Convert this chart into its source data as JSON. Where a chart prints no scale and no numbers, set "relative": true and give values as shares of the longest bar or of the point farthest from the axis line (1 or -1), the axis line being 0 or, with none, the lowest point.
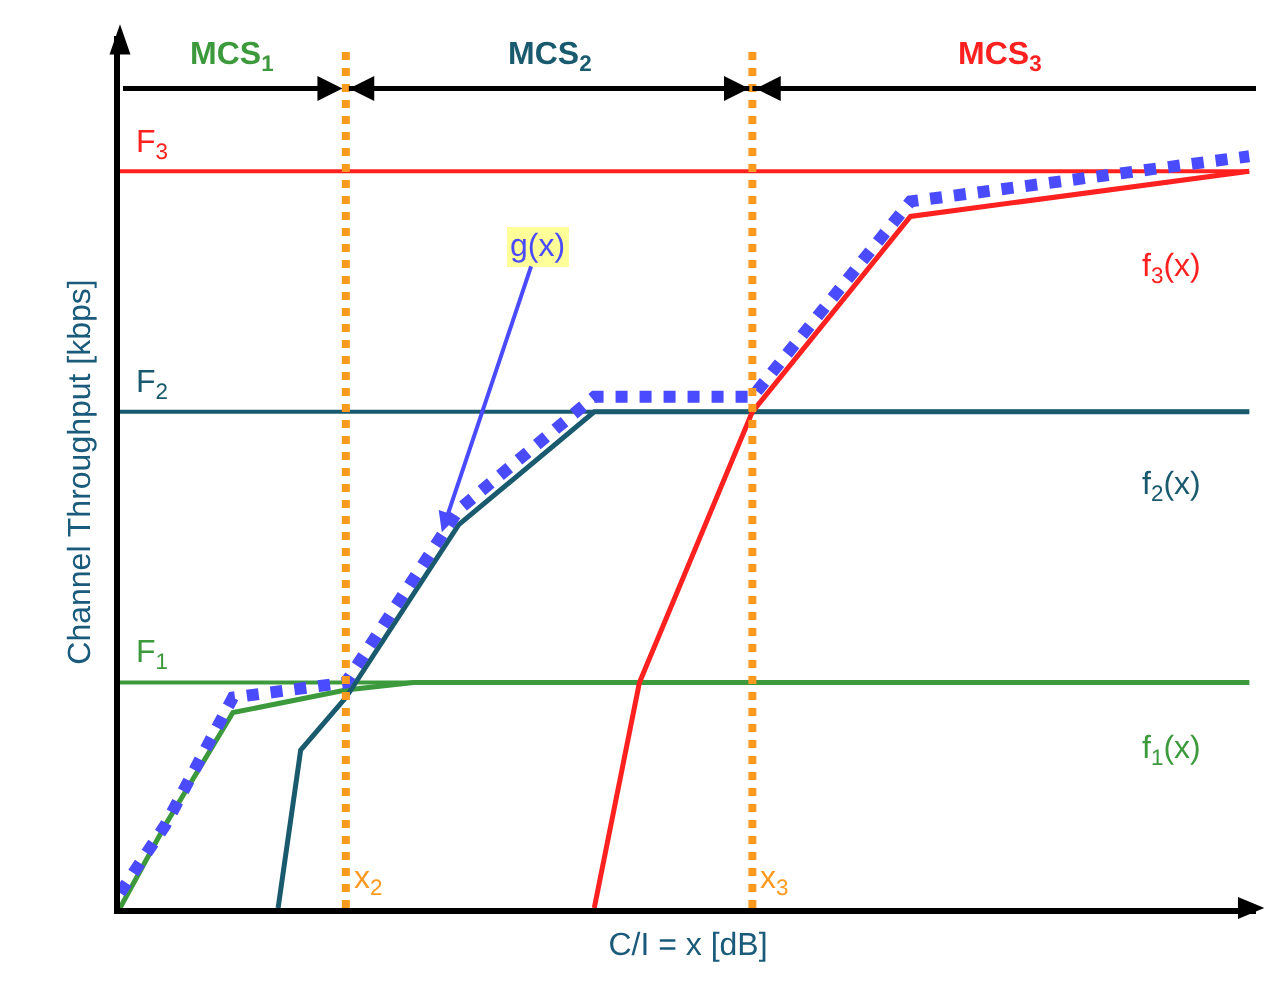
{
  "chart_data": {
    "type": "line",
    "relative": true,
    "xlabel": "C/I = x [dB]",
    "ylabel": "Channel Throughput [kbps]",
    "legend": false,
    "marker": "none",
    "categories": [
      null,
      null,
      null,
      null,
      null,
      null,
      null,
      null,
      null,
      null,
      null,
      null,
      null,
      null,
      null,
      null,
      null,
      null,
      null,
      null,
      null,
      null,
      null,
      null,
      null,
      null,
      null,
      null,
      null,
      null,
      null,
      null,
      null,
      null,
      null,
      null,
      null,
      null,
      null,
      null,
      null,
      null,
      null,
      null,
      null,
      null,
      null,
      null,
      null,
      null,
      null
    ],
    "series": [
      {
        "name": "f$_{1}$(x)",
        "color": "#3c9a3c",
        "values": [
          0,
          null,
          0.11,
          null,
          null,
          0.26,
          null,
          null,
          null,
          null,
          0.29,
          null,
          null,
          0.3,
          null,
          null,
          null,
          null,
          null,
          null,
          null,
          null,
          null,
          null,
          null,
          null,
          null,
          null,
          null,
          null,
          null,
          null,
          null,
          null,
          null,
          null,
          null,
          null,
          null,
          null,
          null,
          null,
          null,
          null,
          null,
          null,
          null,
          null,
          null,
          null,
          0.3
        ]
      },
      {
        "name": "f$_{2}$(x)",
        "color": "#1a5a6e",
        "values": [
          null,
          null,
          null,
          null,
          null,
          null,
          null,
          0,
          0.21,
          null,
          0.28,
          null,
          null,
          null,
          null,
          0.51,
          null,
          null,
          null,
          null,
          null,
          0.66,
          null,
          null,
          null,
          null,
          null,
          null,
          null,
          null,
          null,
          null,
          null,
          null,
          null,
          null,
          null,
          null,
          null,
          null,
          null,
          null,
          null,
          null,
          null,
          null,
          null,
          null,
          null,
          null,
          0.66
        ]
      },
      {
        "name": "f$_{3}$(x)",
        "color": "#ff2020",
        "values": [
          null,
          null,
          null,
          null,
          null,
          null,
          null,
          null,
          null,
          null,
          null,
          null,
          null,
          null,
          null,
          null,
          null,
          null,
          null,
          null,
          null,
          0,
          null,
          0.3,
          null,
          null,
          null,
          null,
          0.66,
          null,
          null,
          null,
          null,
          null,
          null,
          0.92,
          null,
          null,
          null,
          null,
          null,
          null,
          null,
          null,
          null,
          null,
          null,
          null,
          null,
          null,
          0.98
        ]
      },
      {
        "name": "g(x)",
        "color": "#4a4aff",
        "line_style": "dotted",
        "values": [
          0.02,
          null,
          0.11,
          null,
          null,
          0.28,
          null,
          null,
          null,
          null,
          0.3,
          null,
          null,
          null,
          null,
          0.53,
          null,
          null,
          null,
          null,
          null,
          0.68,
          null,
          null,
          null,
          null,
          null,
          null,
          0.68,
          null,
          null,
          null,
          null,
          null,
          null,
          0.94,
          null,
          null,
          null,
          null,
          null,
          null,
          null,
          null,
          null,
          null,
          null,
          null,
          null,
          null,
          1
        ]
      }
    ],
    "ref_lines": [
      {
        "axis": "y",
        "value": 0.3,
        "label": "F$_{1}$",
        "color": "#3c9a3c"
      },
      {
        "axis": "y",
        "value": 0.66,
        "label": "F$_{2}$",
        "color": "#1a5a6e"
      },
      {
        "axis": "y",
        "value": 0.98,
        "label": "F$_{3}$",
        "color": "#ff2020"
      }
    ],
    "annotations": [
      "MCS$_{1}$",
      "MCS$_{2}$",
      "MCS$_{3}$",
      "x$_{2}$",
      "x$_{3}$"
    ]
  }
}
